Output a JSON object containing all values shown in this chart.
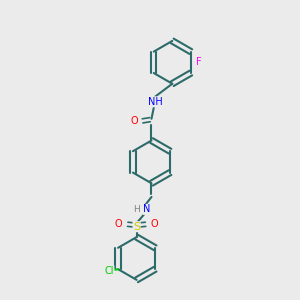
{
  "background_color": "#ebebeb",
  "bond_color": "#2d6b6b",
  "atom_colors": {
    "O": "#ff0000",
    "N": "#0000ff",
    "S": "#cccc00",
    "Cl": "#00cc00",
    "F": "#ff00ff",
    "H": "#808080",
    "C": "#2d6b6b"
  },
  "figsize": [
    3.0,
    3.0
  ],
  "dpi": 100
}
